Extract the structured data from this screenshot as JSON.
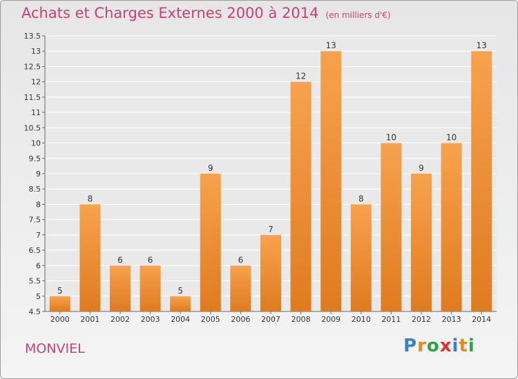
{
  "chart_data": {
    "type": "bar",
    "title": "Achats et Charges Externes 2000 à 2014",
    "subtitle": "(en milliers d'€)",
    "categories": [
      "2000",
      "2001",
      "2002",
      "2003",
      "2004",
      "2005",
      "2006",
      "2007",
      "2008",
      "2009",
      "2010",
      "2011",
      "2012",
      "2013",
      "2014"
    ],
    "values": [
      5,
      8,
      6,
      6,
      5,
      9,
      6,
      7,
      12,
      13,
      8,
      10,
      9,
      10,
      13
    ],
    "ylim": [
      4.5,
      13.5
    ],
    "yticks": [
      "4.5",
      "5",
      "5.5",
      "6",
      "6.5",
      "7",
      "7.5",
      "8",
      "8.5",
      "9",
      "9.5",
      "10",
      "10.5",
      "11",
      "11.5",
      "12",
      "12.5",
      "13",
      "13.5"
    ],
    "grid": true,
    "colors": {
      "bar_light": "#f7a24d",
      "bar_dark": "#e07b1f",
      "title": "#c8407a",
      "grid": "#ffffff"
    }
  },
  "place_name": "MONVIEL",
  "logo": {
    "letters": [
      "P",
      "r",
      "o",
      "x",
      "i",
      "t",
      "i"
    ],
    "colors": [
      "#3a7fd0",
      "#e58a1e",
      "#2ea34a",
      "#e2322c",
      "#3a7fd0",
      "#e58a1e",
      "#2ea34a"
    ]
  }
}
